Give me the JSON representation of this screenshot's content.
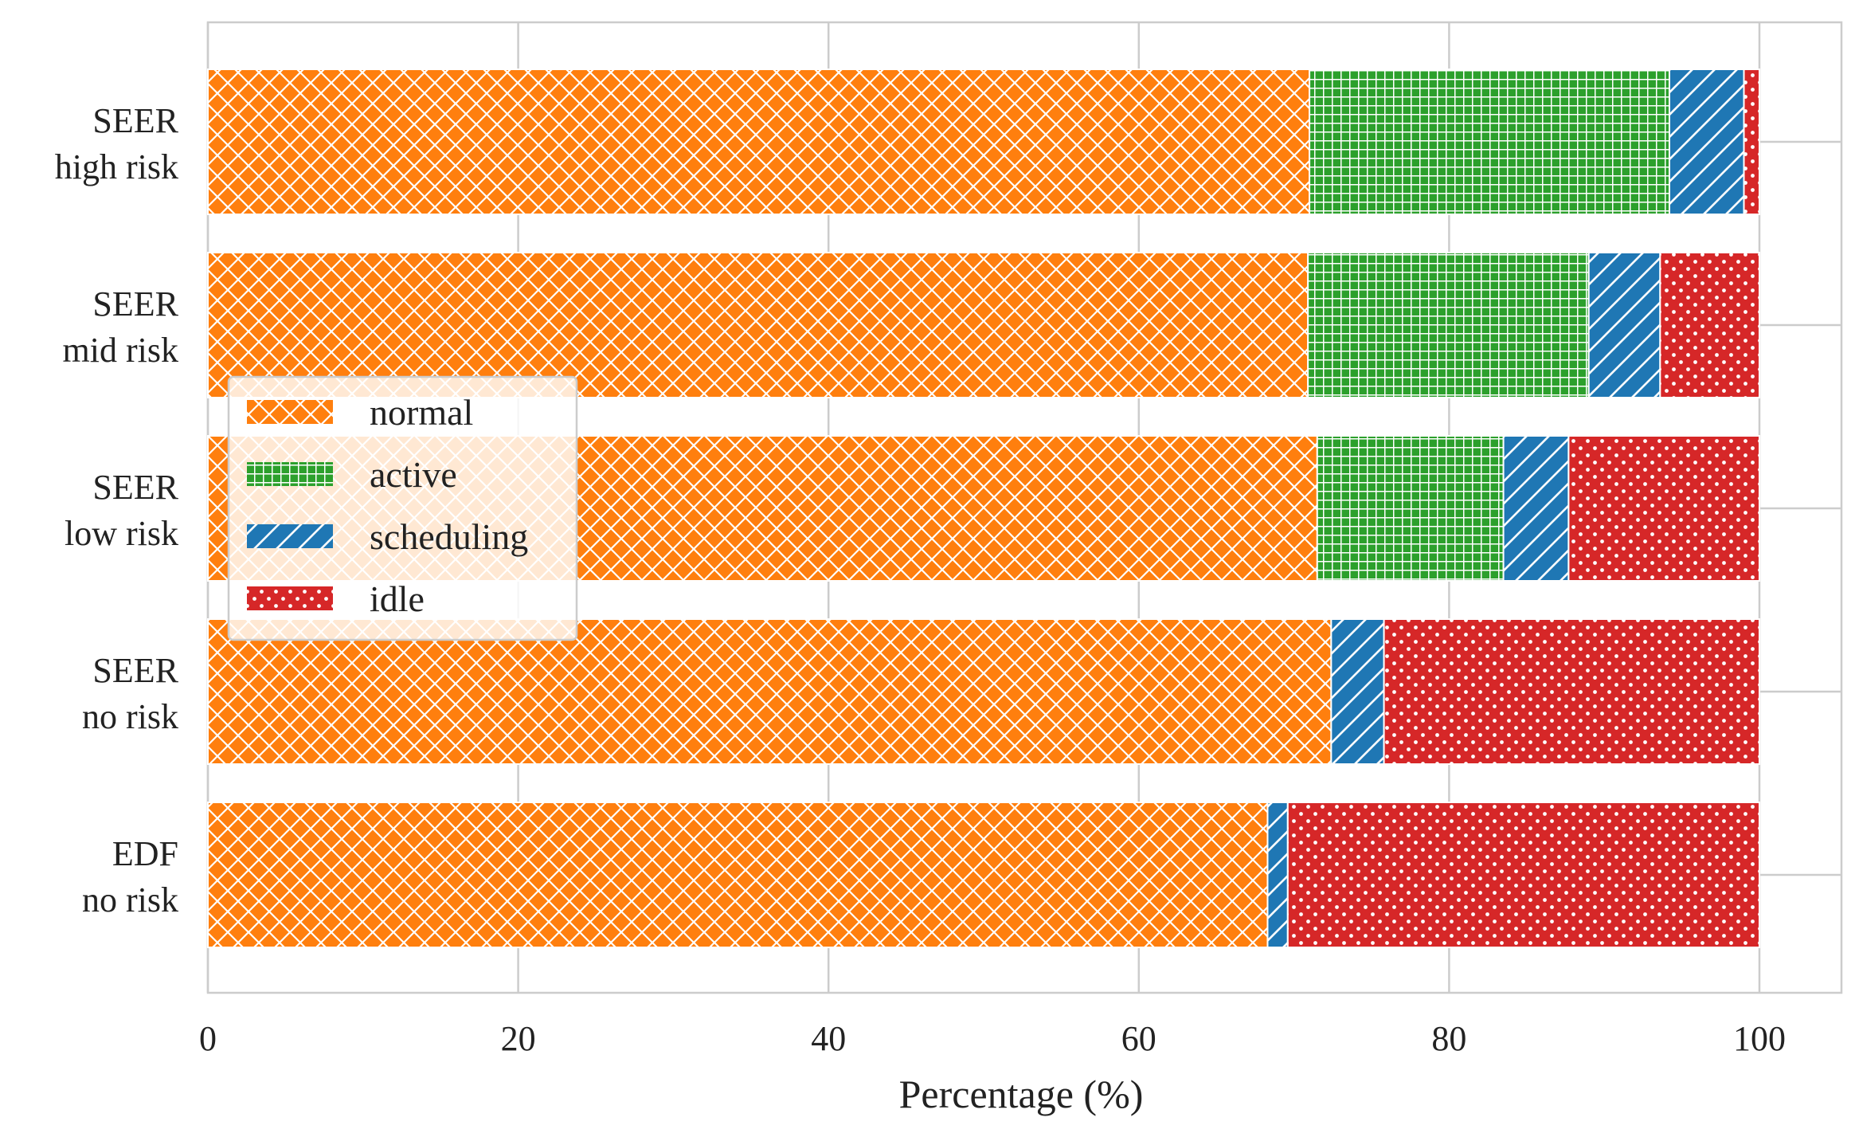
{
  "chart_data": {
    "type": "bar",
    "orientation": "horizontal",
    "stacked": true,
    "categories": [
      [
        "SEER",
        "high risk"
      ],
      [
        "SEER",
        "mid risk"
      ],
      [
        "SEER",
        "low risk"
      ],
      [
        "SEER",
        "no risk"
      ],
      [
        "EDF",
        "no risk"
      ]
    ],
    "series": [
      {
        "name": "normal",
        "color": "#ff7f0e",
        "pattern": "crosshatch",
        "values": [
          71.0,
          70.9,
          71.5,
          72.4,
          68.3
        ]
      },
      {
        "name": "active",
        "color": "#2ca02c",
        "pattern": "grid",
        "values": [
          23.2,
          18.1,
          12.0,
          0.0,
          0.0
        ]
      },
      {
        "name": "scheduling",
        "color": "#1f77b4",
        "pattern": "diagonal",
        "values": [
          4.8,
          4.6,
          4.2,
          3.4,
          1.3
        ]
      },
      {
        "name": "idle",
        "color": "#d62728",
        "pattern": "dots",
        "values": [
          1.0,
          6.4,
          12.3,
          24.2,
          30.4
        ]
      }
    ],
    "xlabel": "Percentage (%)",
    "ylabel": "",
    "xlim": [
      0,
      105
    ],
    "xticks": [
      "0",
      "20",
      "40",
      "60",
      "80",
      "100"
    ],
    "grid": true,
    "legend_position": "center-left"
  }
}
